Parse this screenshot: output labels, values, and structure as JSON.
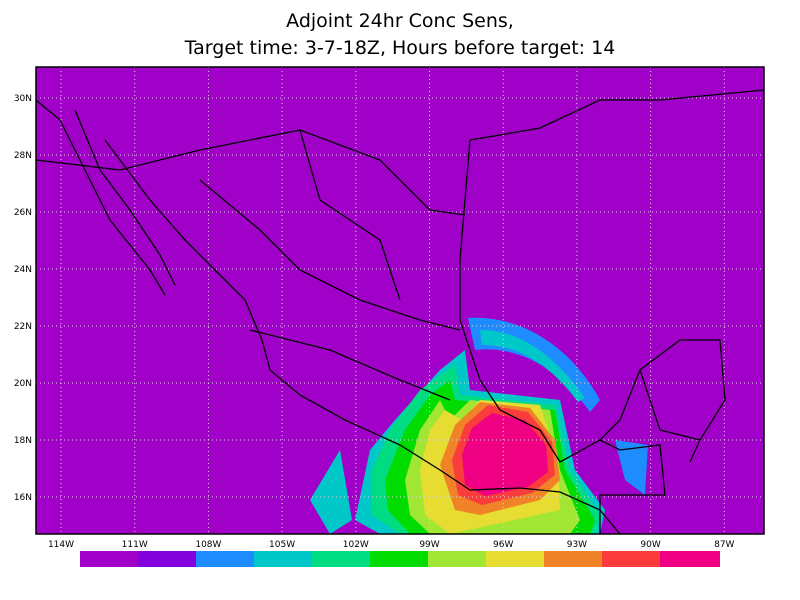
{
  "title": {
    "line1": "Adjoint 24hr Conc Sens,",
    "line2": "Target time: 3-7-18Z, Hours before target: 14"
  },
  "lat_labels": [
    "30N",
    "28N",
    "26N",
    "24N",
    "22N",
    "20N",
    "18N",
    "16N"
  ],
  "lon_labels": [
    "114W",
    "111W",
    "108W",
    "105W",
    "102W",
    "99W",
    "96W",
    "93W",
    "90W",
    "87W"
  ]
}
